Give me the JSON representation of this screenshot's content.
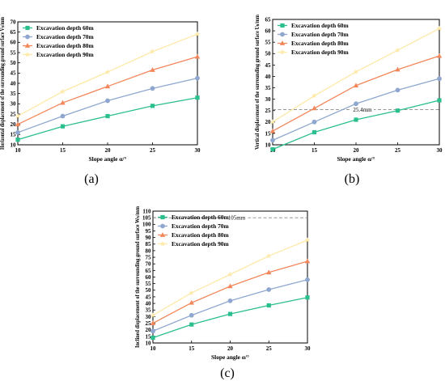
{
  "colors": {
    "Excavation depth 60m": "#2bbf8f",
    "Excavation depth 70m": "#8fa7cf",
    "Excavation depth 80m": "#f3875c",
    "Excavation depth 90m": "#fde9a8"
  },
  "chart_data": [
    {
      "type": "line",
      "panel_label": "(a)",
      "xlabel": "Slope angle α/°",
      "ylabel": "Horizontal displacement of the surrounding ground surface Vₕ/mm",
      "xlim": [
        10,
        30
      ],
      "ylim": [
        10,
        70
      ],
      "xticks": [
        10,
        15,
        20,
        25,
        30
      ],
      "yticks": [
        10,
        15,
        20,
        25,
        30,
        35,
        40,
        45,
        50,
        55,
        60,
        65,
        70
      ],
      "legend": "top-left",
      "series": [
        {
          "name": "Excavation depth 60m",
          "marker": "square",
          "x": [
            10,
            15,
            20,
            25,
            30
          ],
          "y": [
            12.5,
            19,
            24,
            29,
            33
          ]
        },
        {
          "name": "Excavation depth 70m",
          "marker": "circle",
          "x": [
            10,
            15,
            20,
            25,
            30
          ],
          "y": [
            16,
            24,
            31.5,
            37.5,
            42.5
          ]
        },
        {
          "name": "Excavation depth 80m",
          "marker": "triangle",
          "x": [
            10,
            15,
            20,
            25,
            30
          ],
          "y": [
            20,
            30.5,
            38.5,
            46.5,
            53
          ]
        },
        {
          "name": "Excavation depth 90m",
          "marker": "star",
          "x": [
            10,
            15,
            20,
            25,
            30
          ],
          "y": [
            24,
            36,
            45.5,
            55.5,
            64
          ]
        }
      ]
    },
    {
      "type": "line",
      "panel_label": "(b)",
      "xlabel": "Slope angle α/°",
      "ylabel": "Vertical displacement of the surrounding ground surface Uₕ/mm",
      "xlim": [
        10,
        30
      ],
      "ylim": [
        10,
        65
      ],
      "xticks": [
        10,
        15,
        20,
        25,
        30
      ],
      "yticks": [
        10,
        15,
        20,
        25,
        30,
        35,
        40,
        45,
        50,
        55,
        60,
        65
      ],
      "legend": "top-left",
      "reference_line": {
        "value": 25.4,
        "label": "25.4mm"
      },
      "series": [
        {
          "name": "Excavation depth 60m",
          "marker": "square",
          "x": [
            10,
            15,
            20,
            25,
            30
          ],
          "y": [
            8,
            15.5,
            21,
            25,
            29.5
          ]
        },
        {
          "name": "Excavation depth 70m",
          "marker": "circle",
          "x": [
            10,
            15,
            20,
            25,
            30
          ],
          "y": [
            12,
            20,
            28,
            34,
            39
          ]
        },
        {
          "name": "Excavation depth 80m",
          "marker": "triangle",
          "x": [
            10,
            15,
            20,
            25,
            30
          ],
          "y": [
            16,
            26,
            36,
            43,
            49
          ]
        },
        {
          "name": "Excavation depth 90m",
          "marker": "star",
          "x": [
            10,
            15,
            20,
            25,
            30
          ],
          "y": [
            20,
            31.5,
            42,
            51.5,
            61
          ]
        }
      ]
    },
    {
      "type": "line",
      "panel_label": "(c)",
      "xlabel": "Slope angle α/°",
      "ylabel": "Inclined displacement of the surrounding ground surface Wₕ/mm",
      "xlim": [
        10,
        30
      ],
      "ylim": [
        10,
        110
      ],
      "xticks": [
        10,
        15,
        20,
        25,
        30
      ],
      "yticks": [
        10,
        15,
        20,
        25,
        30,
        35,
        40,
        45,
        50,
        55,
        60,
        65,
        70,
        75,
        80,
        85,
        90,
        95,
        100,
        105,
        110
      ],
      "legend": "top-left",
      "reference_line": {
        "value": 105,
        "label": "105mm"
      },
      "series": [
        {
          "name": "Excavation depth 60m",
          "marker": "square",
          "x": [
            10,
            15,
            20,
            25,
            30
          ],
          "y": [
            14,
            24,
            32,
            38.5,
            44.5
          ]
        },
        {
          "name": "Excavation depth 70m",
          "marker": "circle",
          "x": [
            10,
            15,
            20,
            25,
            30
          ],
          "y": [
            19,
            31,
            42,
            50.5,
            58
          ]
        },
        {
          "name": "Excavation depth 80m",
          "marker": "triangle",
          "x": [
            10,
            15,
            20,
            25,
            30
          ],
          "y": [
            25,
            40.5,
            53,
            63.5,
            72
          ]
        },
        {
          "name": "Excavation depth 90m",
          "marker": "star",
          "x": [
            10,
            15,
            20,
            25,
            30
          ],
          "y": [
            31,
            48,
            62,
            76,
            88
          ]
        }
      ]
    }
  ]
}
